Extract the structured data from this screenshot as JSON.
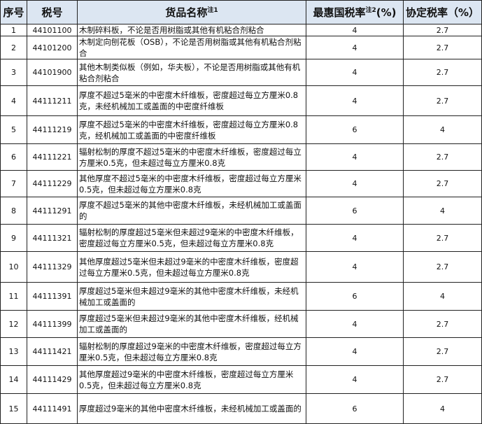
{
  "header": {
    "seq": "序号",
    "code": "税号",
    "name": "货品名称",
    "name_note": "注1",
    "mfn": "最惠国税率",
    "mfn_note": "注2",
    "mfn_unit": "(%)",
    "agreement": "协定税率（%）"
  },
  "colors": {
    "header_bg": "#dce6f2",
    "border": "#222222"
  },
  "rows": [
    {
      "seq": "1",
      "code": "44101100",
      "name": "木制碎料板，不论是否用树脂或其他有机粘合剂粘合",
      "mfn": "4",
      "agreement": "2.7"
    },
    {
      "seq": "2",
      "code": "44101200",
      "name": "木制定向刨花板（OSB），不论是否用树脂或其他有机粘合剂粘合",
      "mfn": "4",
      "agreement": "2.7"
    },
    {
      "seq": "3",
      "code": "44101900",
      "name": "其他木制类似板（例如，华夫板），不论是否用树脂或其他有机粘合剂粘合",
      "mfn": "4",
      "agreement": "2.7"
    },
    {
      "seq": "4",
      "code": "44111211",
      "name": "厚度不超过5毫米的中密度木纤维板，密度超过每立方厘米0.8克，未经机械加工或盖面的中密度纤维板",
      "mfn": "4",
      "agreement": "2.7"
    },
    {
      "seq": "5",
      "code": "44111219",
      "name": "厚度不超过5毫米的中密度木纤维板，密度超过每立方厘米0.8克，经机械加工或盖面的中密度纤维板",
      "mfn": "6",
      "agreement": "4"
    },
    {
      "seq": "6",
      "code": "44111221",
      "name": "辐射松制的厚度不超过5毫米的中密度木纤维板，密度超过每立方厘米0.5克，但未超过每立方厘米0.8克",
      "mfn": "4",
      "agreement": "2.7"
    },
    {
      "seq": "7",
      "code": "44111229",
      "name": "其他厚度不超过5毫米的中密度木纤维板，密度超过每立方厘米0.5克，但未超过每立方厘米0.8克",
      "mfn": "4",
      "agreement": "2.7"
    },
    {
      "seq": "8",
      "code": "44111291",
      "name": "厚度不超过5毫米的其他中密度木纤维板，未经机械加工或盖面的",
      "mfn": "6",
      "agreement": "4"
    },
    {
      "seq": "9",
      "code": "44111321",
      "name": "辐射松制的厚度超过5毫米但未超过9毫米的中密度木纤维板，密度超过每立方厘米0.5克，但未超过每立方厘米0.8克",
      "mfn": "4",
      "agreement": "2.7"
    },
    {
      "seq": "10",
      "code": "44111329",
      "name": "其他厚度超过5毫米但未超过9毫米的中密度木纤维板，密度超过每立方厘米0.5克，但未超过每立方厘米0.8克",
      "mfn": "4",
      "agreement": "2.7"
    },
    {
      "seq": "11",
      "code": "44111391",
      "name": "厚度超过5毫米但未超过9毫米的其他中密度木纤维板，未经机械加工或盖面的",
      "mfn": "6",
      "agreement": "4"
    },
    {
      "seq": "12",
      "code": "44111399",
      "name": "厚度超过5毫米但未超过9毫米的其他中密度木纤维板，经机械加工或盖面的",
      "mfn": "4",
      "agreement": "2.7"
    },
    {
      "seq": "13",
      "code": "44111421",
      "name": "辐射松制的厚度超过9毫米的中密度木纤维板，密度超过每立方厘米0.5克，但未超过每立方厘米0.8克",
      "mfn": "4",
      "agreement": "2.7"
    },
    {
      "seq": "14",
      "code": "44111429",
      "name": "其他厚度超过9毫米的中密度木纤维板，密度超过每立方厘米0.5克，但未超过每立方厘米0.8克",
      "mfn": "4",
      "agreement": "2.7"
    },
    {
      "seq": "15",
      "code": "44111491",
      "name": "厚度超过9毫米的其他中密度木纤维板，未经机械加工或盖面的",
      "mfn": "6",
      "agreement": "4"
    }
  ]
}
